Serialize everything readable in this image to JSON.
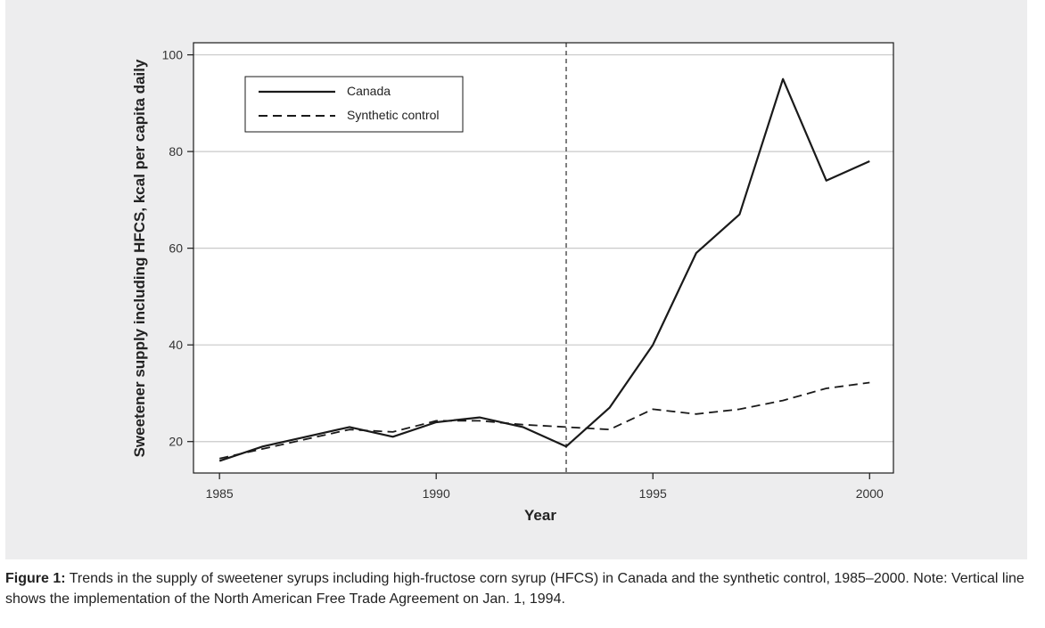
{
  "chart_data": {
    "type": "line",
    "xlabel": "Year",
    "ylabel": "Sweetener supply including HFCS, kcal per capita daily",
    "xlim": [
      1984.4,
      2000.55
    ],
    "ylim": [
      13.5,
      102.5
    ],
    "x_ticks": [
      "1985",
      "1990",
      "1995",
      "2000"
    ],
    "y_ticks": [
      "20",
      "40",
      "60",
      "80",
      "100"
    ],
    "grid": "horizontal",
    "legend_position": "top-left",
    "vertical_line": 1993,
    "series": [
      {
        "name": "Canada",
        "style": "solid",
        "x": [
          1985,
          1986,
          1987,
          1988,
          1989,
          1990,
          1991,
          1992,
          1993,
          1994,
          1995,
          1996,
          1997,
          1998,
          1999,
          2000
        ],
        "y": [
          16,
          19,
          21,
          23,
          21,
          24,
          25,
          23,
          19,
          27,
          40,
          59,
          67,
          95,
          74,
          78
        ]
      },
      {
        "name": "Synthetic control",
        "style": "dashed",
        "x": [
          1985,
          1986,
          1987,
          1988,
          1989,
          1990,
          1991,
          1992,
          1993,
          1994,
          1995,
          1996,
          1997,
          1998,
          1999,
          2000
        ],
        "y": [
          16.5,
          18.5,
          20.5,
          22.5,
          22,
          24.3,
          24.3,
          23.5,
          23,
          22.5,
          26.7,
          25.7,
          26.7,
          28.5,
          31,
          32.2
        ]
      }
    ]
  },
  "caption": {
    "label": "Figure 1:",
    "text": " Trends in the supply of sweetener syrups including high-fructose corn syrup (HFCS) in Canada and the synthetic control, 1985–2000. Note: Vertical line shows the implementation of the North American Free Trade Agreement on Jan. 1, 1994."
  },
  "colors": {
    "panel_background": "#ededee",
    "plot_background": "#ffffff",
    "grid": "#c9c9c9",
    "line": "#1a1a1a"
  }
}
